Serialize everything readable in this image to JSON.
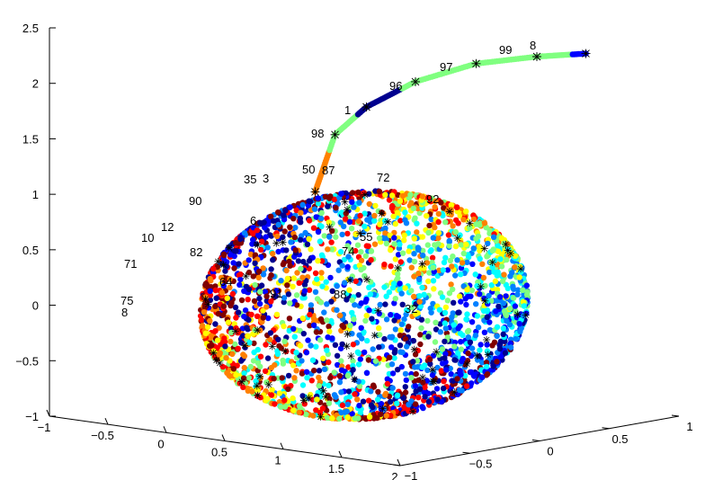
{
  "chart_data": {
    "type": "scatter",
    "projection": "3d",
    "title": "",
    "xlabel": "",
    "ylabel": "",
    "zlabel": "",
    "xlim": [
      -1,
      2
    ],
    "ylim": [
      -1,
      1
    ],
    "zlim": [
      -1,
      2.5
    ],
    "grid": false,
    "x_ticks": [
      "−1",
      "−0.5",
      "0",
      "0.5",
      "1",
      "1.5",
      "2"
    ],
    "y_ticks": [
      "−1",
      "−0.5",
      "0",
      "0.5",
      "1"
    ],
    "z_ticks": [
      "−1",
      "−0.5",
      "0",
      "0.5",
      "1",
      "1.5",
      "2",
      "2.5"
    ],
    "colormap": [
      "#00008f",
      "#0000ff",
      "#0080ff",
      "#00ffff",
      "#80ff80",
      "#ffff00",
      "#ff8000",
      "#ff0000",
      "#800000"
    ],
    "series": [
      {
        "description_type": "point-cloud",
        "shape": "ellipsoid",
        "center": [
          0.5,
          0,
          0
        ],
        "radii": [
          0.9,
          0.9,
          1.0
        ],
        "point_count": 2600
      },
      {
        "description_type": "curve",
        "points": [
          [
            0.2,
            -0.1,
            1.0
          ],
          [
            0.25,
            0,
            1.5
          ],
          [
            0.4,
            0.1,
            1.75
          ],
          [
            0.7,
            0.2,
            2.0
          ],
          [
            1.1,
            0.3,
            2.2
          ],
          [
            1.5,
            0.4,
            2.3
          ],
          [
            1.8,
            0.5,
            2.35
          ]
        ],
        "colors": [
          "#ff8000",
          "#80ff80",
          "#00008f",
          "#80ff80",
          "#80ff80",
          "#80ff80",
          "#0000ff"
        ]
      }
    ],
    "annotations": [
      "8",
      "99",
      "97",
      "96",
      "1",
      "98",
      "50",
      "87",
      "72",
      "35",
      "3",
      "90",
      "92",
      "6",
      "12",
      "10",
      "82",
      "71",
      "75",
      "8",
      "64",
      "91",
      "88",
      "32",
      "74",
      "55"
    ]
  }
}
